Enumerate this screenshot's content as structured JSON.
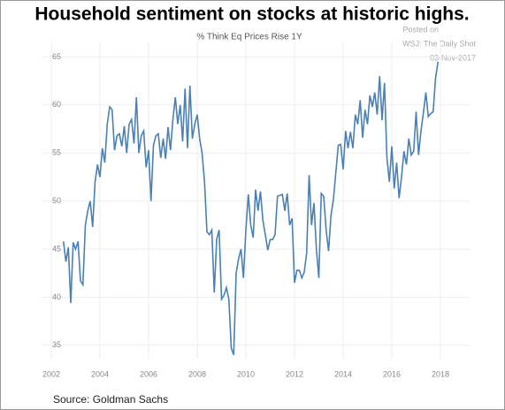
{
  "chart_data": {
    "type": "line",
    "title": "Household sentiment on stocks at historic highs.",
    "subtitle": "% Think Eq Prices Rise 1Y",
    "annotations": [
      "Posted on",
      "WSJ: The Daily Shot",
      "03-Nov-2017"
    ],
    "source": "Source: Goldman Sachs",
    "x": [
      2002.5,
      2002.6,
      2002.7,
      2002.8,
      2002.9,
      2003.0,
      2003.1,
      2003.2,
      2003.3,
      2003.4,
      2003.5,
      2003.6,
      2003.7,
      2003.8,
      2003.9,
      2004.0,
      2004.1,
      2004.2,
      2004.3,
      2004.4,
      2004.5,
      2004.6,
      2004.7,
      2004.8,
      2004.9,
      2005.0,
      2005.1,
      2005.2,
      2005.3,
      2005.4,
      2005.5,
      2005.6,
      2005.7,
      2005.8,
      2005.9,
      2006.0,
      2006.1,
      2006.2,
      2006.3,
      2006.4,
      2006.5,
      2006.6,
      2006.7,
      2006.8,
      2006.9,
      2007.0,
      2007.1,
      2007.2,
      2007.3,
      2007.4,
      2007.5,
      2007.6,
      2007.7,
      2007.8,
      2007.9,
      2008.0,
      2008.1,
      2008.2,
      2008.3,
      2008.4,
      2008.5,
      2008.6,
      2008.7,
      2008.8,
      2008.9,
      2009.0,
      2009.1,
      2009.2,
      2009.3,
      2009.4,
      2009.5,
      2009.6,
      2009.7,
      2009.8,
      2009.9,
      2010.0,
      2010.1,
      2010.2,
      2010.3,
      2010.4,
      2010.5,
      2010.6,
      2010.7,
      2010.8,
      2010.9,
      2011.0,
      2011.1,
      2011.2,
      2011.3,
      2011.4,
      2011.5,
      2011.6,
      2011.7,
      2011.8,
      2011.9,
      2012.0,
      2012.1,
      2012.2,
      2012.3,
      2012.4,
      2012.5,
      2012.6,
      2012.7,
      2012.8,
      2012.9,
      2013.0,
      2013.1,
      2013.2,
      2013.3,
      2013.4,
      2013.5,
      2013.6,
      2013.7,
      2013.8,
      2013.9,
      2014.0,
      2014.1,
      2014.2,
      2014.3,
      2014.4,
      2014.5,
      2014.6,
      2014.7,
      2014.8,
      2014.9,
      2015.0,
      2015.1,
      2015.2,
      2015.3,
      2015.4,
      2015.5,
      2015.6,
      2015.7,
      2015.8,
      2015.9,
      2016.0,
      2016.1,
      2016.2,
      2016.3,
      2016.4,
      2016.5,
      2016.6,
      2016.7,
      2016.8,
      2016.9,
      2017.0,
      2017.1,
      2017.2,
      2017.3,
      2017.4,
      2017.5,
      2017.6,
      2017.7,
      2017.8,
      2017.9
    ],
    "series": [
      {
        "name": "% Think Eq Prices Rise 1Y",
        "color": "#4a80b3",
        "values": [
          45.8,
          43.7,
          45.2,
          39.4,
          45.7,
          45.0,
          45.8,
          41.7,
          41.3,
          47.5,
          49,
          50,
          47.3,
          52,
          53.8,
          52.5,
          55.5,
          54,
          58,
          59.8,
          59.5,
          55.3,
          56.8,
          57,
          55.7,
          57.8,
          55,
          58,
          58.5,
          56,
          60.8,
          55,
          56.8,
          57.3,
          53.5,
          55.3,
          50,
          55.8,
          56.8,
          57,
          54.5,
          56.5,
          54.4,
          57.7,
          55.3,
          58.5,
          60.8,
          58,
          60,
          56.2,
          61.7,
          55.5,
          62,
          56.5,
          58,
          59,
          56.5,
          55,
          52,
          46.8,
          46.5,
          47,
          40.5,
          46,
          47,
          39.8,
          40.2,
          41,
          39.8,
          34.7,
          34,
          42.5,
          44,
          45,
          42,
          47,
          50.7,
          47.5,
          46.2,
          51.2,
          49,
          51,
          48,
          46.5,
          44.9,
          46,
          46,
          46.5,
          50.5,
          50.6,
          50.7,
          49,
          50.8,
          47.5,
          48.2,
          41.5,
          42.8,
          42.8,
          42,
          42.6,
          44.6,
          52.7,
          47.5,
          49.8,
          45,
          42,
          50.8,
          50.5,
          47,
          44.8,
          48.5,
          50.2,
          53,
          55.8,
          55.9,
          53.3,
          57.3,
          55.5,
          57.2,
          55.5,
          59,
          58,
          60.5,
          56.6,
          59.5,
          58,
          61,
          59.8,
          61.3,
          59,
          63,
          58.4,
          62.3,
          54.5,
          52,
          55.7,
          51.3,
          54,
          50.3,
          52.5,
          55.2,
          53.8,
          56.5,
          54.8,
          55.2,
          59.3,
          54.8,
          57.3,
          59.2,
          61.3,
          58.8,
          59.1,
          59.3,
          62.8,
          64.5
        ]
      }
    ],
    "xlim": [
      2001.6,
      2019.2
    ],
    "ylim": [
      33.6,
      66.6
    ],
    "xticks": [
      2002,
      2004,
      2006,
      2008,
      2010,
      2012,
      2014,
      2016,
      2018
    ],
    "yticks": [
      35,
      40,
      45,
      50,
      55,
      60,
      65
    ],
    "grid": true
  }
}
